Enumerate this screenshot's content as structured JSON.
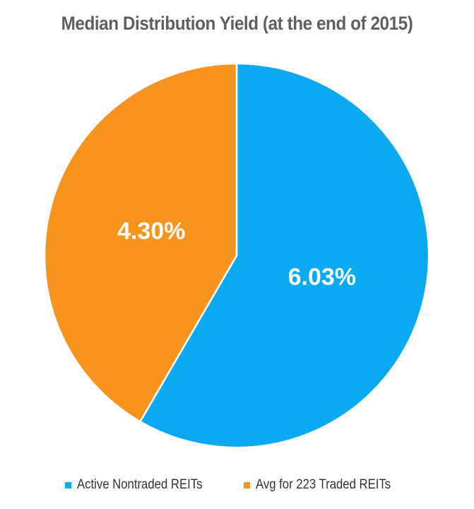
{
  "chart_data": {
    "type": "pie",
    "title": "Median Distribution Yield (at the end of 2015)",
    "slices": [
      {
        "name": "Active Nontraded REITs",
        "value": 6.03,
        "label": "6.03%",
        "color": "#0aa9f1"
      },
      {
        "name": "Avg for 223 Traded REITs",
        "value": 4.3,
        "label": "4.30%",
        "color": "#f7941e"
      }
    ],
    "legend_placement": "bottom",
    "legend": [
      "Active Nontraded REITs",
      "Avg for 223 Traded REITs"
    ]
  }
}
